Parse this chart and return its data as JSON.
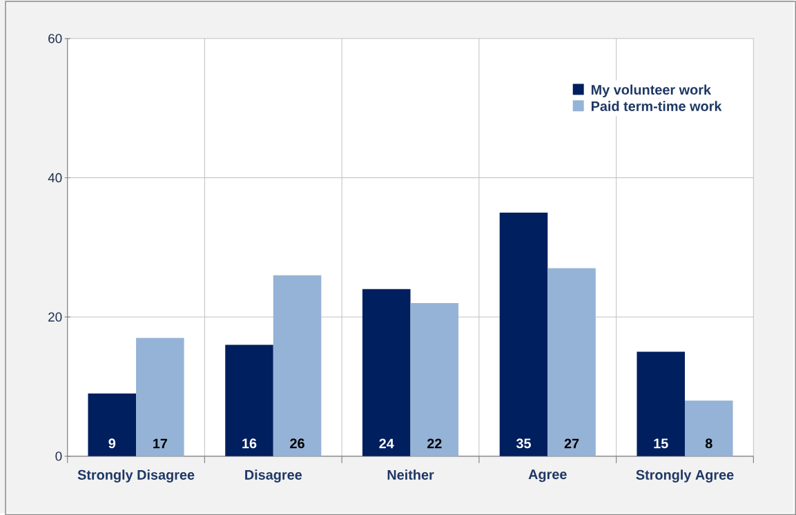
{
  "chart_data": {
    "type": "bar",
    "categories": [
      "Strongly Disagree",
      "Disagree",
      "Neither",
      "Agree",
      "Strongly Agree"
    ],
    "series": [
      {
        "name": "My volunteer work",
        "color": "#001f5f",
        "values": [
          9,
          16,
          24,
          35,
          15
        ]
      },
      {
        "name": "Paid term-time work",
        "color": "#95b3d7",
        "values": [
          17,
          26,
          22,
          27,
          8
        ]
      }
    ],
    "ylim": [
      0,
      60
    ],
    "yticks": [
      0,
      20,
      40,
      60
    ],
    "grid": true,
    "legend": "top right",
    "data_labels": true
  }
}
